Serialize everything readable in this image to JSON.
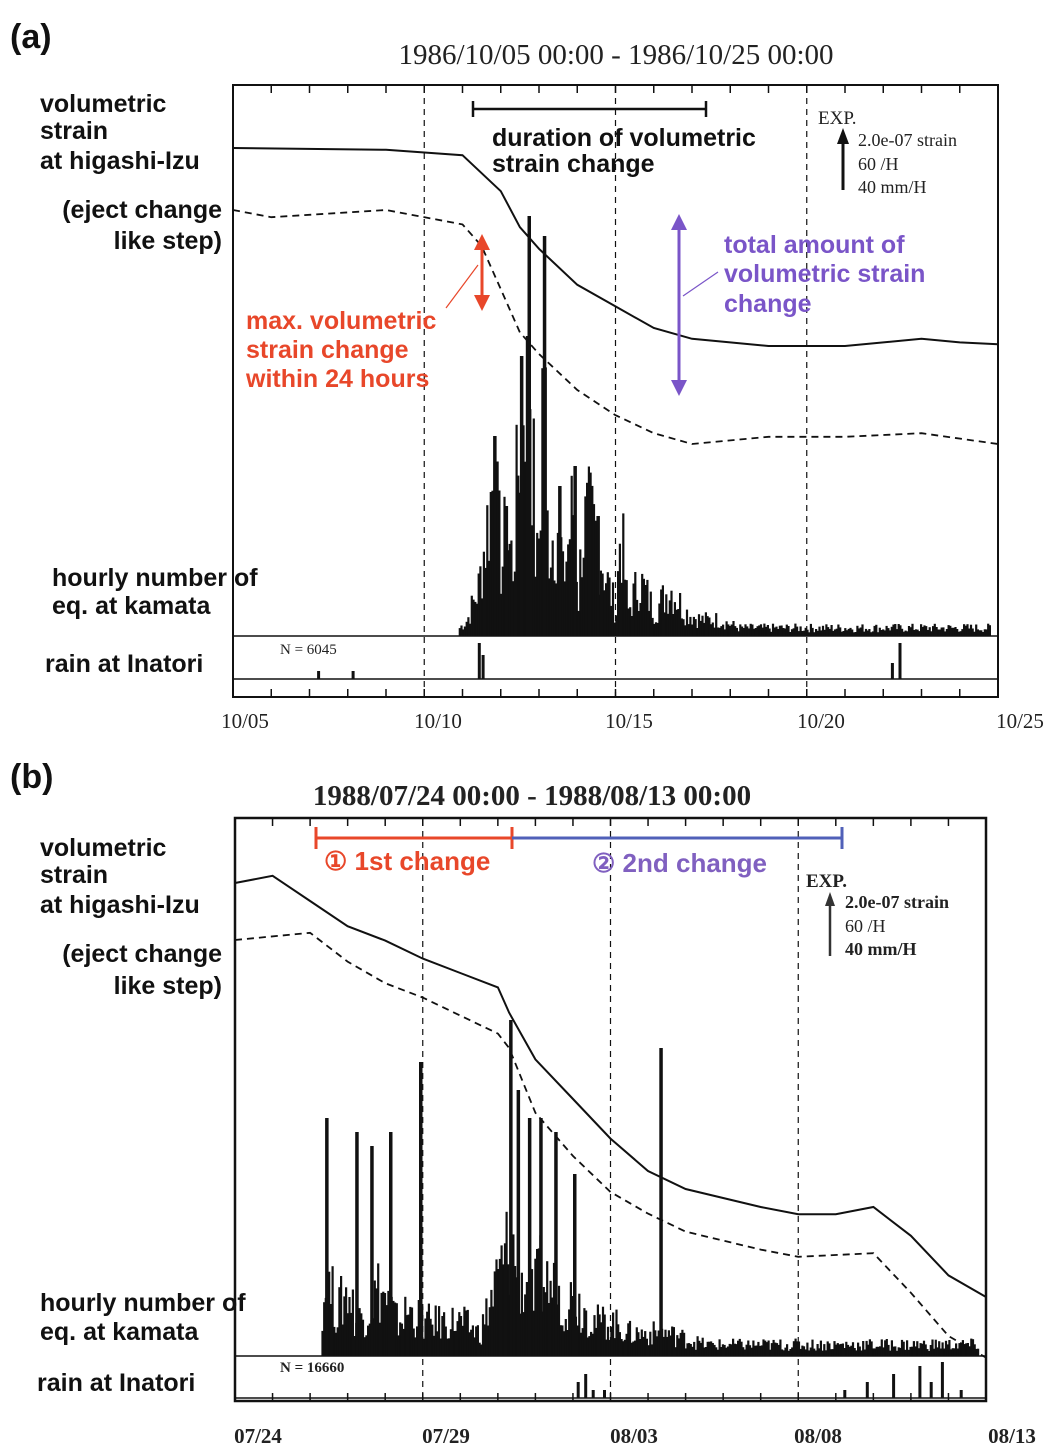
{
  "chart_data": [
    {
      "panel": "(a)",
      "type": "line",
      "title": "1986/10/05 00:00 - 1986/10/25 00:00",
      "x_range": [
        "10/05",
        "10/25"
      ],
      "x_ticks": [
        "10/05",
        "10/10",
        "10/15",
        "10/20",
        "10/25"
      ],
      "row_labels": {
        "strain": [
          "volumetric",
          "strain",
          "at higashi-Izu"
        ],
        "eject": [
          "(eject change",
          "like step)"
        ],
        "eq": [
          "hourly number of",
          "eq. at kamata"
        ],
        "rain": "rain at Inatori"
      },
      "scale": {
        "exp": "EXP.",
        "strain": "2.0e-07 strain",
        "eq": "60 /H",
        "rain": "40 mm/H"
      },
      "n_label": "N =   6045",
      "annotations": {
        "duration": [
          "duration of volumetric",
          "strain change"
        ],
        "max": [
          "max. volumetric",
          "strain change",
          "within 24 hours"
        ],
        "total": [
          "total amount of",
          "volumetric strain",
          "change"
        ]
      },
      "colors": {
        "max": "#e8472a",
        "total": "#7a55c8"
      },
      "series": [
        {
          "name": "volumetric strain at higashi-Izu",
          "style": "solid",
          "points": [
            [
              0,
              0
            ],
            [
              4,
              -0.05
            ],
            [
              6,
              -0.2
            ],
            [
              7,
              -1.2
            ],
            [
              7.5,
              -2.2
            ],
            [
              8,
              -2.8
            ],
            [
              9,
              -3.8
            ],
            [
              10,
              -4.4
            ],
            [
              11,
              -5.0
            ],
            [
              12,
              -5.3
            ],
            [
              14,
              -5.5
            ],
            [
              16,
              -5.5
            ],
            [
              18,
              -5.3
            ],
            [
              19,
              -5.4
            ],
            [
              20,
              -5.45
            ]
          ]
        },
        {
          "name": "(eject change like step)",
          "style": "dashed",
          "points": [
            [
              0,
              0
            ],
            [
              1,
              -0.2
            ],
            [
              4,
              0
            ],
            [
              6,
              -0.4
            ],
            [
              6.5,
              -1.0
            ],
            [
              7,
              -2.2
            ],
            [
              7.5,
              -3.4
            ],
            [
              8,
              -4.0
            ],
            [
              9,
              -5.0
            ],
            [
              10,
              -5.7
            ],
            [
              11,
              -6.2
            ],
            [
              12,
              -6.5
            ],
            [
              14,
              -6.3
            ],
            [
              16,
              -6.3
            ],
            [
              18,
              -6.2
            ],
            [
              20,
              -6.5
            ]
          ]
        },
        {
          "name": "hourly number of eq. at kamata",
          "style": "bars",
          "points": [
            [
              5.9,
              1
            ],
            [
              6.1,
              2
            ],
            [
              6.4,
              6
            ],
            [
              6.8,
              20
            ],
            [
              7.0,
              8
            ],
            [
              7.1,
              13
            ],
            [
              7.3,
              9
            ],
            [
              7.5,
              28
            ],
            [
              7.7,
              42
            ],
            [
              7.9,
              7
            ],
            [
              8.0,
              15
            ],
            [
              8.1,
              40
            ],
            [
              8.2,
              12
            ],
            [
              8.4,
              13
            ],
            [
              8.5,
              15
            ],
            [
              8.6,
              7
            ],
            [
              8.9,
              17
            ],
            [
              9.0,
              4
            ],
            [
              9.1,
              13
            ],
            [
              9.3,
              14
            ],
            [
              9.5,
              12
            ],
            [
              9.8,
              6
            ],
            [
              10.0,
              3
            ],
            [
              10.1,
              14
            ],
            [
              10.3,
              3
            ],
            [
              10.6,
              7
            ],
            [
              11.0,
              3
            ],
            [
              11.4,
              6
            ],
            [
              11.8,
              3
            ],
            [
              12.2,
              2
            ],
            [
              12.7,
              2
            ],
            [
              13.2,
              1
            ],
            [
              14.0,
              1
            ],
            [
              15.0,
              1
            ],
            [
              16.0,
              1
            ],
            [
              17.5,
              1
            ],
            [
              19.0,
              1
            ],
            [
              19.8,
              1
            ]
          ],
          "peak": [
            [
              6.8,
              20
            ],
            [
              7.1,
              13
            ],
            [
              7.5,
              28
            ],
            [
              7.7,
              42
            ],
            [
              8.1,
              40
            ],
            [
              8.5,
              15
            ],
            [
              8.9,
              17
            ],
            [
              9.5,
              12
            ]
          ]
        },
        {
          "name": "rain at Inatori",
          "style": "bars",
          "points": [
            [
              2.2,
              1
            ],
            [
              3.1,
              1
            ],
            [
              6.4,
              6
            ],
            [
              6.5,
              3
            ],
            [
              17.2,
              2
            ],
            [
              17.4,
              5
            ]
          ]
        }
      ]
    },
    {
      "panel": "(b)",
      "type": "line",
      "title": "1988/07/24 00:00 - 1988/08/13 00:00",
      "x_range": [
        "07/24",
        "08/13"
      ],
      "x_ticks": [
        "07/24",
        "07/29",
        "08/03",
        "08/08",
        "08/13"
      ],
      "row_labels": {
        "strain": [
          "volumetric",
          "strain",
          "at higashi-Izu"
        ],
        "eject": [
          "(eject change",
          "like step)"
        ],
        "eq": [
          "hourly number of",
          "eq. at kamata"
        ],
        "rain": "rain at Inatori"
      },
      "scale": {
        "exp": "EXP.",
        "strain": "2.0e-07 strain",
        "eq": "60 /H",
        "rain": "40 mm/H"
      },
      "n_label": "N =  16660",
      "annotations": {
        "first": "① 1st change",
        "second": "② 2nd change"
      },
      "colors": {
        "first": "#e8472a",
        "second": "#5060b8",
        "second_text": "#8060c0"
      },
      "series": [
        {
          "name": "volumetric strain at higashi-Izu",
          "style": "solid",
          "points": [
            [
              0,
              0
            ],
            [
              1,
              0.2
            ],
            [
              2,
              -0.5
            ],
            [
              3,
              -1.2
            ],
            [
              4,
              -1.6
            ],
            [
              5,
              -2.1
            ],
            [
              6,
              -2.5
            ],
            [
              7,
              -2.9
            ],
            [
              7.3,
              -3.6
            ],
            [
              8,
              -4.9
            ],
            [
              9,
              -6.0
            ],
            [
              10,
              -7.1
            ],
            [
              11,
              -8.0
            ],
            [
              12,
              -8.5
            ],
            [
              14,
              -9.0
            ],
            [
              15,
              -9.2
            ],
            [
              16,
              -9.2
            ],
            [
              17,
              -9.0
            ],
            [
              18,
              -9.8
            ],
            [
              19,
              -10.9
            ],
            [
              20,
              -11.5
            ]
          ]
        },
        {
          "name": "(eject change like step)",
          "style": "dashed",
          "points": [
            [
              0,
              0
            ],
            [
              2,
              0.2
            ],
            [
              3,
              -0.6
            ],
            [
              4,
              -1.2
            ],
            [
              5,
              -1.6
            ],
            [
              6,
              -2.1
            ],
            [
              7,
              -2.6
            ],
            [
              7.3,
              -3.0
            ],
            [
              8,
              -4.8
            ],
            [
              9,
              -6.0
            ],
            [
              10,
              -7.0
            ],
            [
              11,
              -7.6
            ],
            [
              12,
              -8.1
            ],
            [
              14,
              -8.6
            ],
            [
              15,
              -8.8
            ],
            [
              17,
              -8.7
            ],
            [
              18,
              -9.8
            ],
            [
              19,
              -11.0
            ],
            [
              20,
              -11.6
            ]
          ]
        },
        {
          "name": "hourly number of eq. at kamata",
          "style": "bars",
          "points": [
            [
              2.3,
              5
            ],
            [
              2.5,
              6
            ],
            [
              2.7,
              4
            ],
            [
              3.0,
              6
            ],
            [
              3.2,
              3
            ],
            [
              3.5,
              4
            ],
            [
              3.8,
              6
            ],
            [
              4.0,
              5
            ],
            [
              4.3,
              3
            ],
            [
              4.6,
              4
            ],
            [
              5.0,
              3
            ],
            [
              5.5,
              3
            ],
            [
              6.0,
              3
            ],
            [
              6.5,
              2
            ],
            [
              7.3,
              10
            ],
            [
              7.5,
              8
            ],
            [
              7.7,
              6
            ],
            [
              7.9,
              5
            ],
            [
              8.1,
              7
            ],
            [
              8.4,
              6
            ],
            [
              8.7,
              5
            ],
            [
              9.0,
              5
            ],
            [
              9.3,
              4
            ],
            [
              9.6,
              3
            ],
            [
              10.0,
              3
            ],
            [
              10.5,
              2
            ],
            [
              11.0,
              2
            ],
            [
              11.5,
              2
            ],
            [
              12.5,
              1
            ],
            [
              13.5,
              1
            ],
            [
              15.0,
              1
            ],
            [
              16.5,
              1
            ],
            [
              18.0,
              1
            ],
            [
              19.0,
              1
            ],
            [
              19.8,
              1
            ]
          ],
          "peak": [
            [
              2.4,
              17
            ],
            [
              3.2,
              16
            ],
            [
              3.6,
              15
            ],
            [
              4.1,
              16
            ],
            [
              4.9,
              21
            ],
            [
              7.3,
              24
            ],
            [
              7.5,
              19
            ],
            [
              7.8,
              17
            ],
            [
              8.1,
              17
            ],
            [
              8.5,
              16
            ],
            [
              9.0,
              13
            ],
            [
              11.3,
              22
            ]
          ]
        },
        {
          "name": "rain at Inatori",
          "style": "bars",
          "points": [
            [
              9.1,
              2
            ],
            [
              9.3,
              3
            ],
            [
              9.5,
              1
            ],
            [
              9.8,
              1
            ],
            [
              16.2,
              1
            ],
            [
              16.8,
              2
            ],
            [
              17.5,
              3
            ],
            [
              18.2,
              4
            ],
            [
              18.5,
              2
            ],
            [
              18.8,
              5
            ],
            [
              19.3,
              1
            ]
          ]
        }
      ]
    }
  ]
}
